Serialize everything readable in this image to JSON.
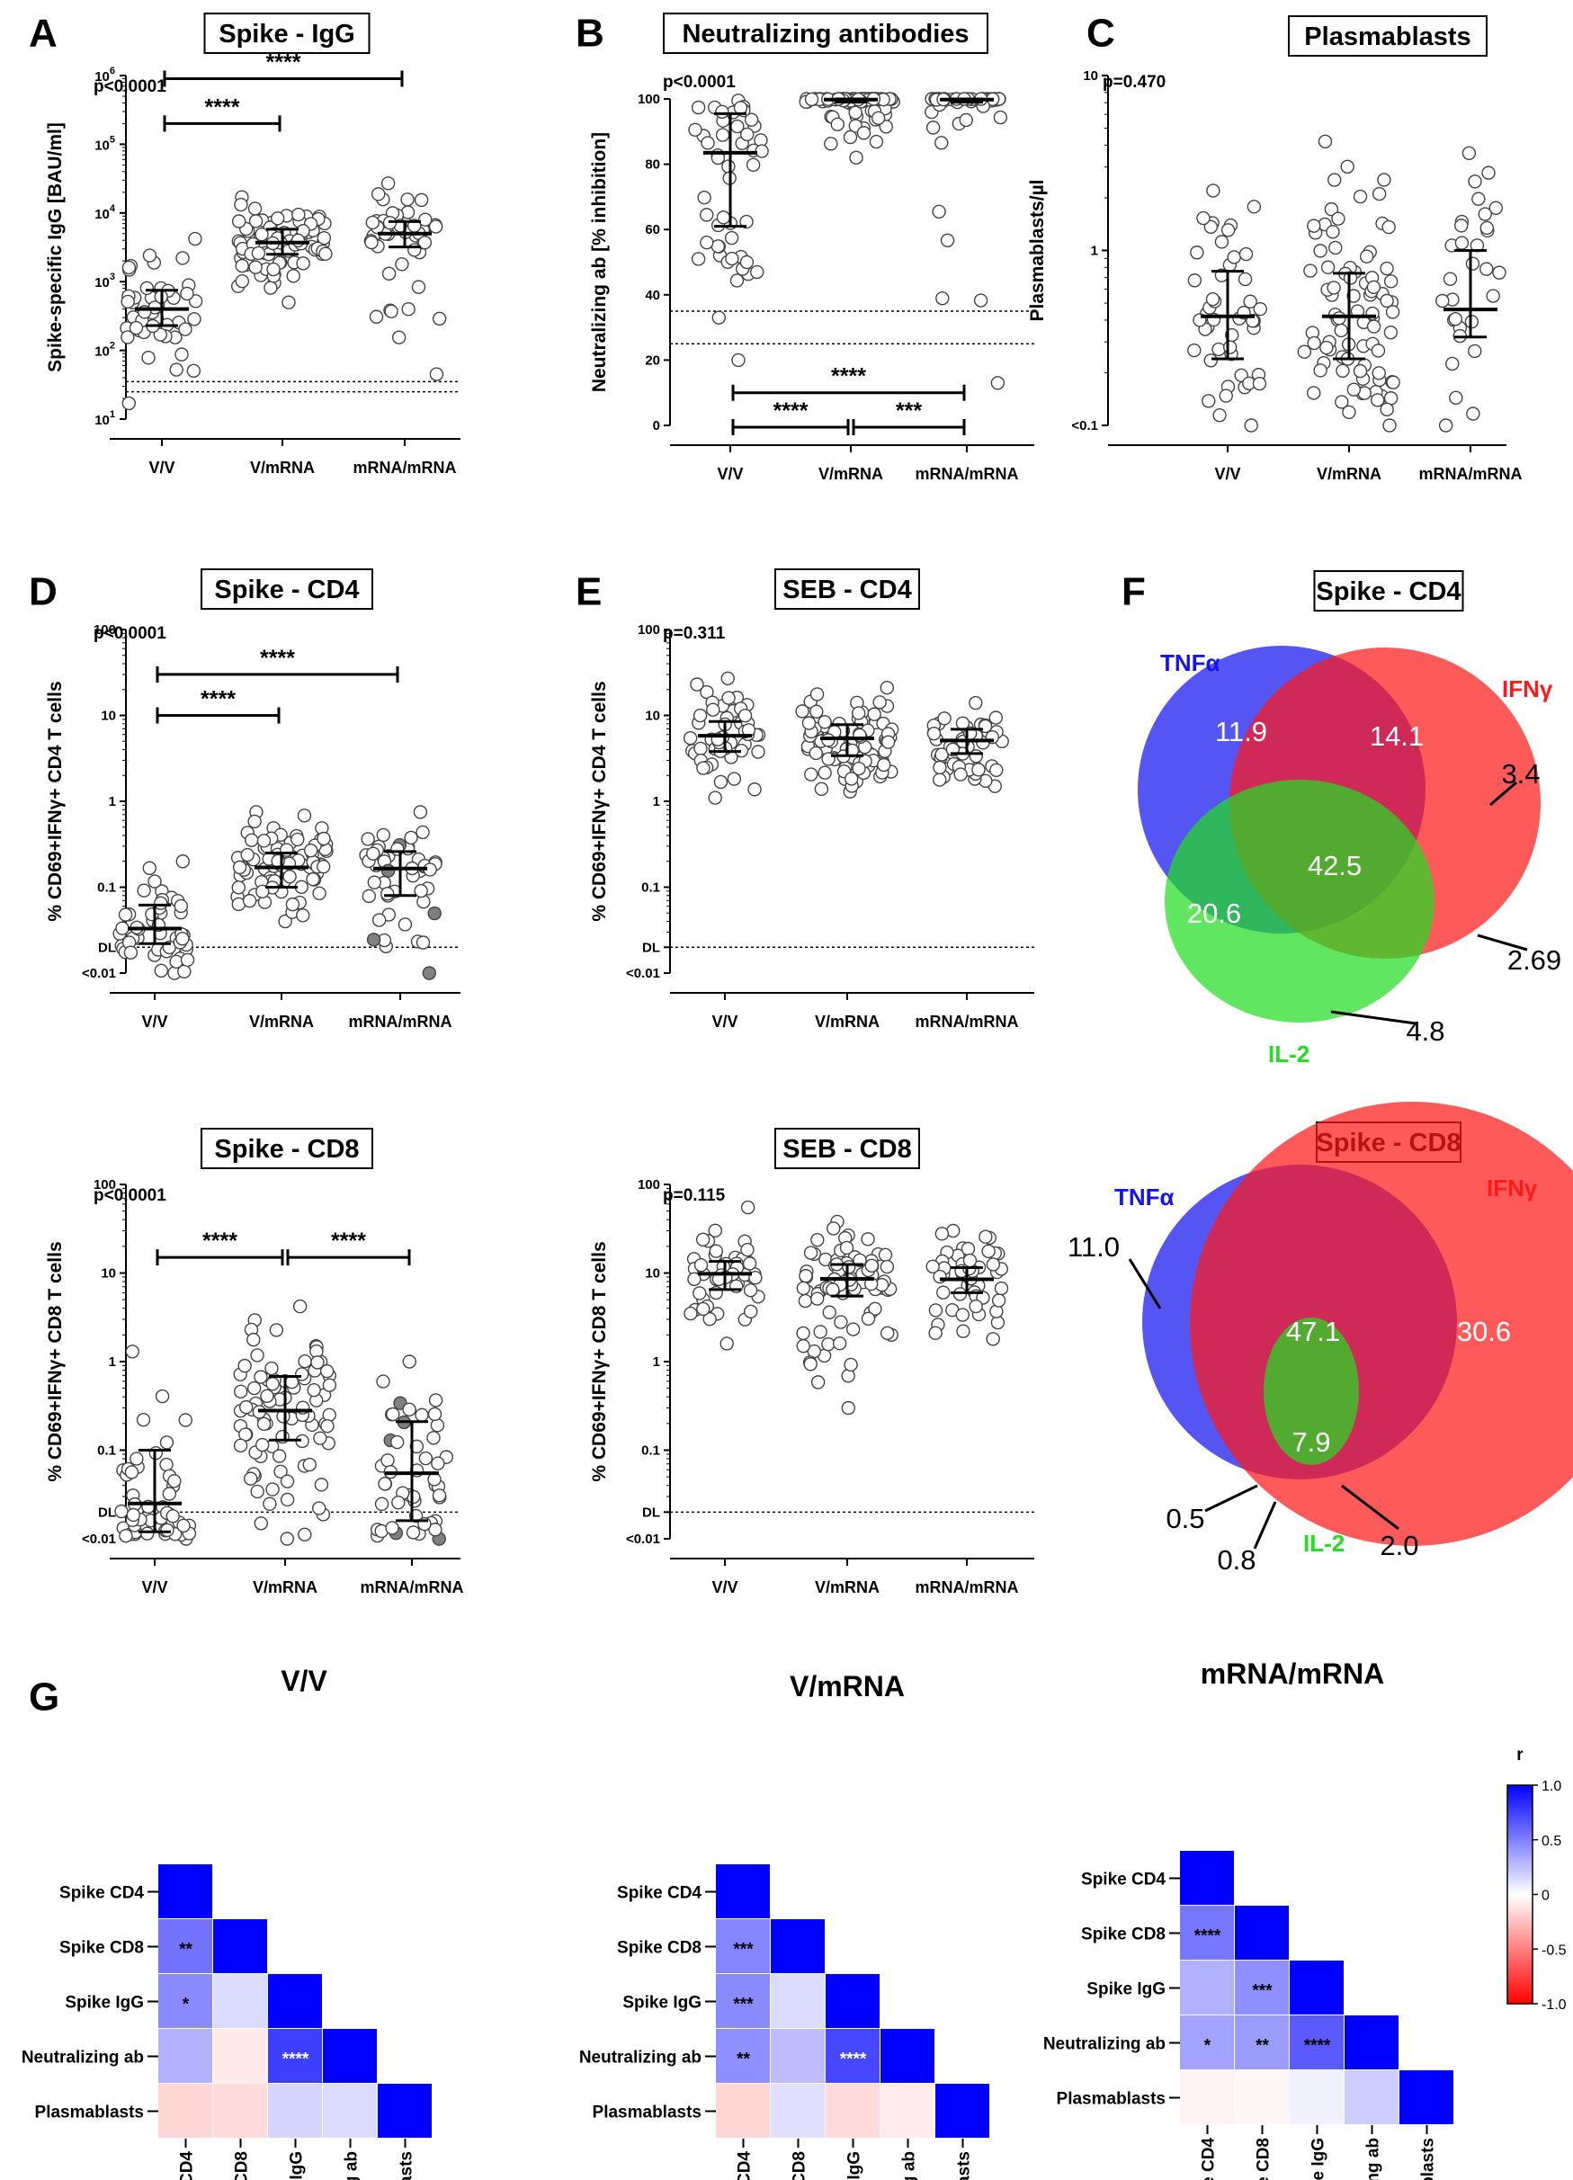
{
  "dot_panels": [
    {
      "id": "A",
      "title": "Spike - IgG",
      "ylabel": "Spike-specific IgG [BAU/ml]",
      "pvalue": "p<0.0001",
      "scale": "log",
      "ylim": [
        10,
        1000000
      ],
      "ticks": [
        {
          "v": 10,
          "base": "10",
          "exp": "1"
        },
        {
          "v": 100,
          "base": "10",
          "exp": "2"
        },
        {
          "v": 1000,
          "base": "10",
          "exp": "3"
        },
        {
          "v": 10000,
          "base": "10",
          "exp": "4"
        },
        {
          "v": 100000,
          "base": "10",
          "exp": "5"
        },
        {
          "v": 1000000,
          "base": "10",
          "exp": "6"
        }
      ],
      "refLines": [
        25,
        35
      ],
      "categories": [
        "V/V",
        "V/mRNA",
        "mRNA/mRNA"
      ],
      "medians": [
        400,
        3700,
        5000
      ],
      "iqr": [
        [
          230,
          750
        ],
        [
          2500,
          5800
        ],
        [
          3200,
          7500
        ]
      ],
      "ranges": [
        [
          17,
          4200
        ],
        [
          500,
          17000
        ],
        [
          45,
          27000
        ]
      ],
      "counts": [
        48,
        85,
        48
      ],
      "comparisons": [
        {
          "from": 0,
          "to": 1,
          "y": 200000,
          "stars": "****"
        },
        {
          "from": 0,
          "to": 2,
          "y": 900000,
          "stars": "****"
        }
      ]
    },
    {
      "id": "B",
      "title": "Neutralizing antibodies",
      "ylabel": "Neutralizing ab [% inhibition]",
      "pvalue": "p<0.0001",
      "scale": "linear",
      "ylim": [
        0,
        100
      ],
      "ticks": [
        {
          "v": 0,
          "t": "0"
        },
        {
          "v": 20,
          "t": "20"
        },
        {
          "v": 40,
          "t": "40"
        },
        {
          "v": 60,
          "t": "60"
        },
        {
          "v": 80,
          "t": "80"
        },
        {
          "v": 100,
          "t": "100"
        }
      ],
      "refLines": [
        25,
        35
      ],
      "categories": [
        "V/V",
        "V/mRNA",
        "mRNA/mRNA"
      ],
      "medians": [
        83.5,
        99.8,
        99.8
      ],
      "iqr": [
        [
          61,
          95.5
        ],
        [
          99,
          100
        ],
        [
          99,
          100
        ]
      ],
      "ranges": [
        [
          20,
          99.5
        ],
        [
          82,
          100
        ],
        [
          13,
          100
        ]
      ],
      "counts": [
        48,
        85,
        48
      ],
      "comparisons": [
        {
          "from": 0,
          "to": 1,
          "y": -1,
          "stars": "****"
        },
        {
          "from": 1,
          "to": 2,
          "y": -1,
          "stars": "***"
        },
        {
          "from": 0,
          "to": 2,
          "y": 10,
          "stars": "****"
        }
      ]
    },
    {
      "id": "C",
      "title": "Plasmablasts",
      "ylabel": "Plasmablasts/µl",
      "pvalue": "p=0.470",
      "scale": "log",
      "ylim": [
        0.1,
        10
      ],
      "ticks": [
        {
          "v": 0.1,
          "t": "<0.1"
        },
        {
          "v": 1,
          "t": "1"
        },
        {
          "v": 10,
          "t": "10"
        }
      ],
      "refLines": [],
      "categories": [
        "V/V",
        "V/mRNA",
        "mRNA/mRNA"
      ],
      "medians": [
        0.42,
        0.42,
        0.46
      ],
      "iqr": [
        [
          0.24,
          0.76
        ],
        [
          0.24,
          0.74
        ],
        [
          0.32,
          1.0
        ]
      ],
      "ranges": [
        [
          0.1,
          2.2
        ],
        [
          0.1,
          4.2
        ],
        [
          0.1,
          3.6
        ]
      ],
      "counts": [
        46,
        83,
        30
      ],
      "comparisons": []
    },
    {
      "id": "D",
      "title": "Spike - CD4",
      "ylabel": "% CD69+IFNγ+ CD4 T cells",
      "pvalue": "p<0.0001",
      "scale": "log",
      "ylim": [
        0.01,
        100
      ],
      "ticks": [
        {
          "v": 0.01,
          "t": "<0.01"
        },
        {
          "v": 0.02,
          "t": "DL"
        },
        {
          "v": 0.1,
          "t": "0.1"
        },
        {
          "v": 1,
          "t": "1"
        },
        {
          "v": 10,
          "t": "10"
        },
        {
          "v": 100,
          "t": "100"
        }
      ],
      "refLines": [
        0.02
      ],
      "categories": [
        "V/V",
        "V/mRNA",
        "mRNA/mRNA"
      ],
      "medians": [
        0.033,
        0.17,
        0.165
      ],
      "iqr": [
        [
          0.022,
          0.062
        ],
        [
          0.1,
          0.25
        ],
        [
          0.08,
          0.26
        ]
      ],
      "ranges": [
        [
          0.01,
          0.2
        ],
        [
          0.04,
          0.75
        ],
        [
          0.01,
          0.75
        ]
      ],
      "counts": [
        48,
        85,
        48
      ],
      "comparisons": [
        {
          "from": 0,
          "to": 1,
          "y": 10,
          "stars": "****"
        },
        {
          "from": 0,
          "to": 2,
          "y": 30,
          "stars": "****"
        }
      ]
    },
    {
      "id": "E",
      "title": "SEB - CD4",
      "ylabel": "% CD69+IFNγ+ CD4 T cells",
      "pvalue": "p=0.311",
      "scale": "log",
      "ylim": [
        0.01,
        100
      ],
      "ticks": [
        {
          "v": 0.01,
          "t": "<0.01"
        },
        {
          "v": 0.02,
          "t": "DL"
        },
        {
          "v": 0.1,
          "t": "0.1"
        },
        {
          "v": 1,
          "t": "1"
        },
        {
          "v": 10,
          "t": "10"
        },
        {
          "v": 100,
          "t": "100"
        }
      ],
      "refLines": [
        0.02
      ],
      "categories": [
        "V/V",
        "V/mRNA",
        "mRNA/mRNA"
      ],
      "medians": [
        5.8,
        5.4,
        5.1
      ],
      "iqr": [
        [
          3.8,
          8.5
        ],
        [
          3.4,
          7.8
        ],
        [
          3.6,
          6.9
        ]
      ],
      "ranges": [
        [
          1.1,
          27
        ],
        [
          1.3,
          21
        ],
        [
          1.5,
          14
        ]
      ],
      "counts": [
        48,
        85,
        48
      ],
      "comparisons": []
    },
    {
      "id": "",
      "title": "Spike - CD8",
      "ylabel": "% CD69+IFNγ+ CD8 T cells",
      "pvalue": "p<0.0001",
      "scale": "log",
      "ylim": [
        0.01,
        100
      ],
      "ticks": [
        {
          "v": 0.01,
          "t": "<0.01"
        },
        {
          "v": 0.02,
          "t": "DL"
        },
        {
          "v": 0.1,
          "t": "0.1"
        },
        {
          "v": 1,
          "t": "1"
        },
        {
          "v": 10,
          "t": "10"
        },
        {
          "v": 100,
          "t": "100"
        }
      ],
      "refLines": [
        0.02
      ],
      "categories": [
        "V/V",
        "V/mRNA",
        "mRNA/mRNA"
      ],
      "medians": [
        0.025,
        0.28,
        0.055
      ],
      "iqr": [
        [
          0.012,
          0.1
        ],
        [
          0.13,
          0.68
        ],
        [
          0.016,
          0.21
        ]
      ],
      "ranges": [
        [
          0.01,
          1.3
        ],
        [
          0.01,
          4.2
        ],
        [
          0.01,
          1.0
        ]
      ],
      "counts": [
        48,
        85,
        48
      ],
      "comparisons": [
        {
          "from": 0,
          "to": 1,
          "y": 15,
          "stars": "****"
        },
        {
          "from": 1,
          "to": 2,
          "y": 15,
          "stars": "****"
        }
      ]
    },
    {
      "id": "",
      "title": "SEB - CD8",
      "ylabel": "% CD69+IFNγ+ CD8 T cells",
      "pvalue": "p=0.115",
      "scale": "log",
      "ylim": [
        0.01,
        100
      ],
      "ticks": [
        {
          "v": 0.01,
          "t": "<0.01"
        },
        {
          "v": 0.02,
          "t": "DL"
        },
        {
          "v": 0.1,
          "t": "0.1"
        },
        {
          "v": 1,
          "t": "1"
        },
        {
          "v": 10,
          "t": "10"
        },
        {
          "v": 100,
          "t": "100"
        }
      ],
      "refLines": [
        0.02
      ],
      "categories": [
        "V/V",
        "V/mRNA",
        "mRNA/mRNA"
      ],
      "medians": [
        9.8,
        8.6,
        8.5
      ],
      "iqr": [
        [
          6.5,
          13.5
        ],
        [
          5.5,
          12.5
        ],
        [
          6,
          11.5
        ]
      ],
      "ranges": [
        [
          1.6,
          55
        ],
        [
          0.3,
          38
        ],
        [
          1.8,
          30
        ]
      ],
      "counts": [
        48,
        85,
        48
      ],
      "comparisons": []
    }
  ],
  "venn_panels": [
    {
      "id": "F",
      "title": "Spike - CD4",
      "sets": [
        {
          "name": "TNFα",
          "color": "#1414f0"
        },
        {
          "name": "IFNγ",
          "color": "#ff1a1a"
        },
        {
          "name": "IL-2",
          "color": "#22dd22"
        }
      ],
      "values": [
        "11.9",
        "14.1",
        "3.4",
        "42.5",
        "20.6",
        "2.69",
        "4.8"
      ]
    },
    {
      "id": "",
      "title": "Spike - CD8",
      "sets": [
        {
          "name": "TNFα",
          "color": "#1414f0"
        },
        {
          "name": "IFNγ",
          "color": "#ff1a1a"
        },
        {
          "name": "IL-2",
          "color": "#22dd22"
        }
      ],
      "values": [
        "11.0",
        "47.1",
        "30.6",
        "7.9",
        "0.5",
        "0.8",
        "2.0"
      ]
    }
  ],
  "heatmap_panels": {
    "id": "G",
    "labels": [
      "Spike CD4",
      "Spike CD8",
      "Spike IgG",
      "Neutralizing ab",
      "Plasmablasts"
    ],
    "colorbar": {
      "title": "r",
      "ticks": [
        "1.0",
        "0.5",
        "0",
        "-0.5",
        "-1.0"
      ],
      "min": -1,
      "max": 1,
      "high_color": "#0000ff",
      "low_color": "#ff0000"
    },
    "matrices": [
      {
        "title": "V/V",
        "r": [
          [
            1,
            0.5,
            0.4,
            0.25,
            -0.12
          ],
          [
            0.5,
            1,
            0.1,
            -0.06,
            -0.1
          ],
          [
            0.4,
            0.1,
            1,
            0.72,
            0.12
          ],
          [
            0.25,
            -0.06,
            0.72,
            1,
            0.1
          ],
          [
            -0.12,
            -0.1,
            0.12,
            0.1,
            1
          ]
        ],
        "stars": [
          [
            "",
            "",
            "",
            "",
            ""
          ],
          [
            "**",
            "",
            "",
            "",
            ""
          ],
          [
            "*",
            "",
            "",
            "",
            ""
          ],
          [
            "",
            "",
            "****",
            "",
            ""
          ],
          [
            "",
            "",
            "",
            "",
            ""
          ]
        ]
      },
      {
        "title": "V/mRNA",
        "r": [
          [
            1,
            0.42,
            0.4,
            0.38,
            -0.12
          ],
          [
            0.42,
            1,
            0.1,
            0.2,
            0.08
          ],
          [
            0.4,
            0.1,
            1,
            0.68,
            -0.1
          ],
          [
            0.38,
            0.2,
            0.68,
            1,
            -0.05
          ],
          [
            -0.12,
            0.08,
            -0.1,
            -0.05,
            1
          ]
        ],
        "stars": [
          [
            "",
            "",
            "",
            "",
            ""
          ],
          [
            "***",
            "",
            "",
            "",
            ""
          ],
          [
            "***",
            "",
            "",
            "",
            ""
          ],
          [
            "**",
            "",
            "****",
            "",
            ""
          ],
          [
            "",
            "",
            "",
            "",
            ""
          ]
        ]
      },
      {
        "title": "mRNA/mRNA",
        "r": [
          [
            1,
            0.48,
            0.25,
            0.3,
            -0.03
          ],
          [
            0.48,
            1,
            0.38,
            0.33,
            -0.02
          ],
          [
            0.25,
            0.38,
            1,
            0.6,
            0.03
          ],
          [
            0.3,
            0.33,
            0.6,
            1,
            0.15
          ],
          [
            -0.03,
            -0.02,
            0.03,
            0.15,
            1
          ]
        ],
        "stars": [
          [
            "",
            "",
            "",
            "",
            ""
          ],
          [
            "****",
            "",
            "",
            "",
            ""
          ],
          [
            "",
            "***",
            "",
            "",
            ""
          ],
          [
            "*",
            "**",
            "****",
            "",
            ""
          ],
          [
            "",
            "",
            "",
            "",
            ""
          ]
        ]
      }
    ]
  }
}
